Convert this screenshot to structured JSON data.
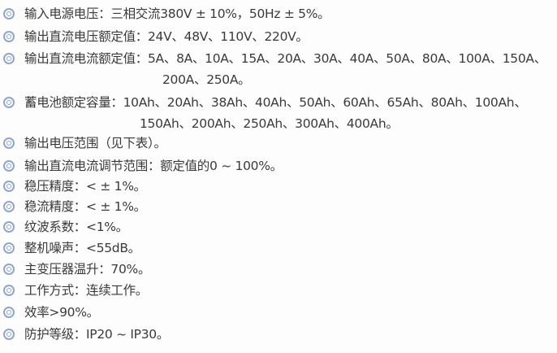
{
  "bullet_color": "#8fa6cf",
  "items": [
    {
      "lines": [
        "输入电源电压：三相交流380V ± 10%，50Hz ± 5%。"
      ]
    },
    {
      "lines": [
        "输出直流电压额定值：24V、48V、110V、220V。"
      ]
    },
    {
      "lines": [
        "输出直流电流额定值：5A、8A、10A、15A、20A、30A、40A、50A、80A、100A、150A、",
        "200A、250A。"
      ]
    },
    {
      "lines": [
        "蓄电池额定容量：10Ah、20Ah、38Ah、40Ah、50Ah、60Ah、65Ah、80Ah、100Ah、",
        "150Ah、200Ah、250Ah、300Ah、400Ah。"
      ]
    },
    {
      "lines": [
        "输出电压范围（见下表）。"
      ]
    },
    {
      "lines": [
        "输出直流电流调节范围：额定值的0 ~ 100%。"
      ]
    },
    {
      "lines": [
        "稳压精度：< ± 1%。"
      ]
    },
    {
      "lines": [
        "稳流精度：< ± 1%。"
      ]
    },
    {
      "lines": [
        "纹波系数：<1%。"
      ]
    },
    {
      "lines": [
        "整机噪声：<55dB。"
      ]
    },
    {
      "lines": [
        "主变压器温升：70%。"
      ]
    },
    {
      "lines": [
        "工作方式：连续工作。"
      ]
    },
    {
      "lines": [
        "效率>90%。"
      ]
    },
    {
      "lines": [
        "防护等级：IP20 ~ IP30。"
      ]
    }
  ]
}
